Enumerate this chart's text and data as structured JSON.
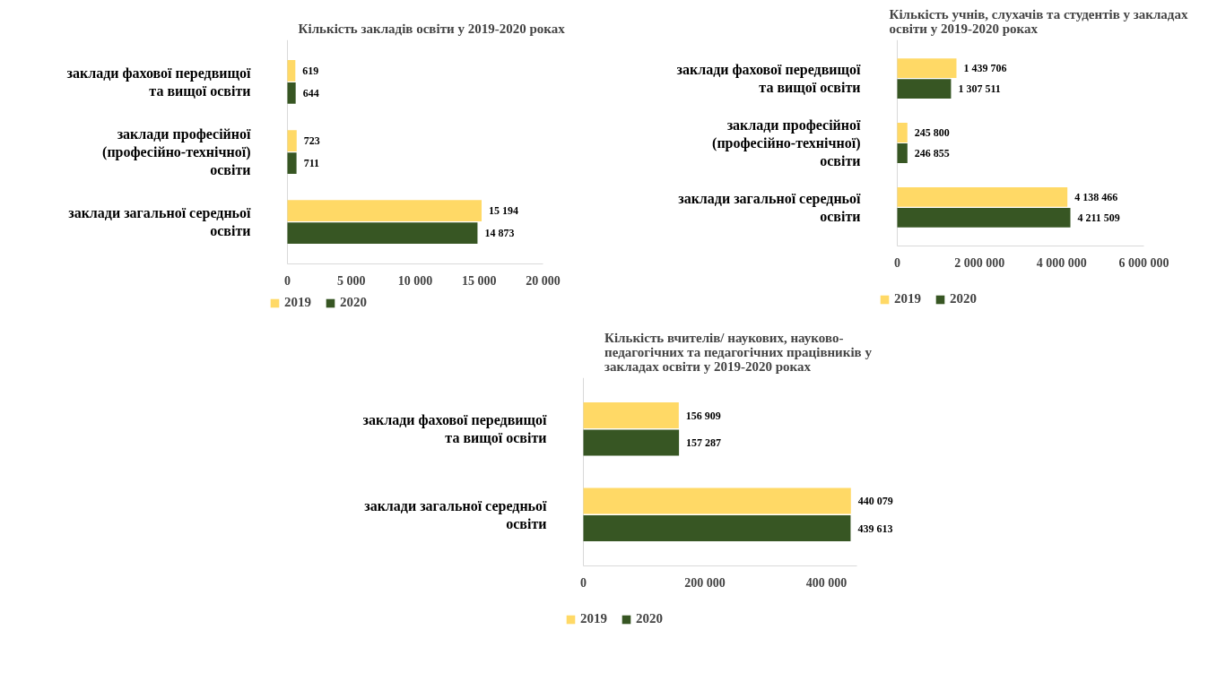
{
  "chart_data": [
    {
      "type": "bar",
      "orientation": "horizontal",
      "title": "Кількість закладів освіти у 2019-2020  роках",
      "categories": [
        "заклади фахової передвищої та вищої освіти",
        "заклади професійної (професійно-технічної) освіти",
        "заклади загальної середньої освіти"
      ],
      "series": [
        {
          "name": "2019",
          "color": "#ffd966",
          "values": [
            619,
            723,
            15194
          ],
          "value_labels": [
            "619",
            "723",
            "15 194"
          ]
        },
        {
          "name": "2020",
          "color": "#375623",
          "values": [
            644,
            711,
            14873
          ],
          "value_labels": [
            "644",
            "711",
            "14 873"
          ]
        }
      ],
      "xlim": [
        0,
        20000
      ],
      "xticks": [
        0,
        {
          "value": 5000,
          "label": "5 000"
        },
        {
          "value": 10000,
          "label": "10 000"
        },
        {
          "value": 15000,
          "label": "15 000"
        },
        {
          "value": 20000,
          "label": "20 000"
        }
      ],
      "grid": false,
      "legend": "bottom left"
    },
    {
      "type": "bar",
      "orientation": "horizontal",
      "title": "Кількість учнів, слухачів та студентів у закладах освіти у 2019-2020 роках",
      "categories": [
        "заклади фахової передвищої та вищої освіти",
        "заклади професійної (професійно-технічної) освіти",
        "заклади загальної середньої освіти"
      ],
      "series": [
        {
          "name": "2019",
          "color": "#ffd966",
          "values": [
            1439706,
            245800,
            4138466
          ],
          "value_labels": [
            "1 439 706",
            "245 800",
            "4 138 466"
          ]
        },
        {
          "name": "2020",
          "color": "#375623",
          "values": [
            1307511,
            246855,
            4211509
          ],
          "value_labels": [
            "1 307 511",
            "246 855",
            "4 211 509"
          ]
        }
      ],
      "xlim": [
        0,
        6000000
      ],
      "xticks": [
        0,
        {
          "value": 2000000,
          "label": "2 000 000"
        },
        {
          "value": 4000000,
          "label": "4 000 000"
        },
        {
          "value": 6000000,
          "label": "6 000 000"
        }
      ],
      "grid": false,
      "legend": "bottom left"
    },
    {
      "type": "bar",
      "orientation": "horizontal",
      "title": "Кількість вчителів/ наукових, науково-педагогічних та педагогічних працівників у закладах освіти у 2019-2020 роках",
      "categories": [
        "заклади фахової передвищої та вищої освіти",
        "заклади загальної середньої освіти"
      ],
      "series": [
        {
          "name": "2019",
          "color": "#ffd966",
          "values": [
            156909,
            440079
          ],
          "value_labels": [
            "156 909",
            "440 079"
          ]
        },
        {
          "name": "2020",
          "color": "#375623",
          "values": [
            157287,
            439613
          ],
          "value_labels": [
            "157 287",
            "439 613"
          ]
        }
      ],
      "xlim": [
        0,
        450000
      ],
      "xticks": [
        0,
        {
          "value": 200000,
          "label": "200 000"
        },
        {
          "value": 400000,
          "label": "400 000"
        }
      ],
      "grid": false,
      "legend": "bottom left"
    }
  ]
}
